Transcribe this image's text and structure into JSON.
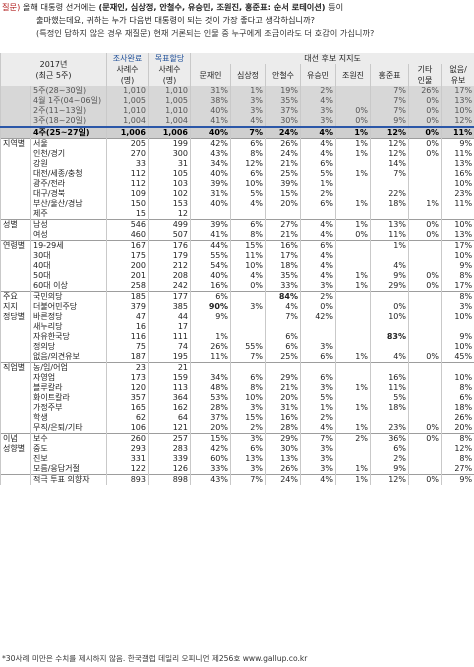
{
  "question": {
    "label": "질문)",
    "line1_a": "올해 대통령 선거에는 ",
    "line1_b": "(문재인, 심상정, 안철수, 유승민, 조원진, 홍준표: 순서 로테이션)",
    "line1_c": " 등이",
    "line2": "출마했는데요, 귀하는 누가 다음번 대통령이 되는 것이 가장 좋다고 생각하십니까?",
    "line3": "(특정인 답하지 않은 경우 재질문) 현재 거론되는 인물 중 누구에게 조금이라도 더 호감이 가십니까?"
  },
  "header": {
    "year": "2017년",
    "period": "(최근 5주)",
    "survey_done": "조사완료",
    "survey_cases": "사례수",
    "target": "목표할당",
    "target_cases": "사례수",
    "cases_unit": "(명)",
    "group": "대선 후보 지지도",
    "candidates": [
      "문재인",
      "심상정",
      "안철수",
      "유승민",
      "조원진",
      "홍준표"
    ],
    "etc": [
      "기타",
      "인물"
    ],
    "none": [
      "없음/",
      "유보"
    ]
  },
  "rows": [
    {
      "g": "",
      "s": "5주(28~30일)",
      "n1": "1,010",
      "n2": "1,010",
      "v": [
        "31%",
        "1%",
        "19%",
        "2%",
        "",
        "7%",
        "26%",
        "17%"
      ],
      "style": "gray"
    },
    {
      "g": "",
      "s": "4월 1주(04~06일)",
      "n1": "1,005",
      "n2": "1,005",
      "v": [
        "38%",
        "3%",
        "35%",
        "4%",
        "",
        "7%",
        "0%",
        "13%"
      ],
      "style": "gray"
    },
    {
      "g": "",
      "s": "2주(11~13일)",
      "n1": "1,010",
      "n2": "1,010",
      "v": [
        "40%",
        "3%",
        "37%",
        "3%",
        "0%",
        "7%",
        "0%",
        "10%"
      ],
      "style": "gray"
    },
    {
      "g": "",
      "s": "3주(18~20일)",
      "n1": "1,004",
      "n2": "1,004",
      "v": [
        "41%",
        "4%",
        "30%",
        "3%",
        "0%",
        "9%",
        "0%",
        "12%"
      ],
      "style": "gray"
    },
    {
      "g": "",
      "s": "4주(25~27일)",
      "n1": "1,006",
      "n2": "1,006",
      "v": [
        "40%",
        "7%",
        "24%",
        "4%",
        "1%",
        "12%",
        "0%",
        "11%"
      ],
      "style": "black"
    },
    {
      "g": "지역별",
      "s": "서울",
      "n1": "205",
      "n2": "199",
      "v": [
        "42%",
        "6%",
        "26%",
        "4%",
        "1%",
        "12%",
        "0%",
        "9%"
      ],
      "style": "sep"
    },
    {
      "g": "",
      "s": "인천/경기",
      "n1": "270",
      "n2": "300",
      "v": [
        "43%",
        "8%",
        "24%",
        "4%",
        "1%",
        "12%",
        "0%",
        "11%"
      ]
    },
    {
      "g": "",
      "s": "강원",
      "n1": "33",
      "n2": "31",
      "v": [
        "34%",
        "12%",
        "21%",
        "6%",
        "",
        "14%",
        "",
        "13%"
      ]
    },
    {
      "g": "",
      "s": "대전/세종/충청",
      "n1": "112",
      "n2": "105",
      "v": [
        "40%",
        "6%",
        "25%",
        "5%",
        "1%",
        "7%",
        "",
        "16%"
      ]
    },
    {
      "g": "",
      "s": "광주/전라",
      "n1": "112",
      "n2": "103",
      "v": [
        "39%",
        "10%",
        "39%",
        "1%",
        "",
        "",
        "",
        "10%"
      ]
    },
    {
      "g": "",
      "s": "대구/경북",
      "n1": "109",
      "n2": "102",
      "v": [
        "31%",
        "5%",
        "15%",
        "2%",
        "",
        "22%",
        "",
        "23%"
      ]
    },
    {
      "g": "",
      "s": "부산/울산/경남",
      "n1": "150",
      "n2": "153",
      "v": [
        "40%",
        "4%",
        "20%",
        "6%",
        "1%",
        "18%",
        "1%",
        "11%"
      ]
    },
    {
      "g": "",
      "s": "제주",
      "n1": "15",
      "n2": "12",
      "v": [
        "",
        "",
        "",
        "",
        "",
        "",
        "",
        ""
      ]
    },
    {
      "g": "성별",
      "s": "남성",
      "n1": "546",
      "n2": "499",
      "v": [
        "39%",
        "6%",
        "27%",
        "4%",
        "1%",
        "13%",
        "0%",
        "10%"
      ],
      "style": "sep"
    },
    {
      "g": "",
      "s": "여성",
      "n1": "460",
      "n2": "507",
      "v": [
        "41%",
        "8%",
        "21%",
        "4%",
        "0%",
        "11%",
        "0%",
        "13%"
      ]
    },
    {
      "g": "연령별",
      "s": "19-29세",
      "n1": "167",
      "n2": "176",
      "v": [
        "44%",
        "15%",
        "16%",
        "6%",
        "",
        "1%",
        "",
        "17%"
      ],
      "style": "sep"
    },
    {
      "g": "",
      "s": "30대",
      "n1": "175",
      "n2": "179",
      "v": [
        "55%",
        "11%",
        "17%",
        "4%",
        "",
        "",
        "",
        "10%"
      ]
    },
    {
      "g": "",
      "s": "40대",
      "n1": "200",
      "n2": "212",
      "v": [
        "54%",
        "10%",
        "18%",
        "4%",
        "",
        "4%",
        "",
        "9%"
      ]
    },
    {
      "g": "",
      "s": "50대",
      "n1": "201",
      "n2": "208",
      "v": [
        "40%",
        "4%",
        "35%",
        "4%",
        "1%",
        "9%",
        "0%",
        "8%"
      ]
    },
    {
      "g": "",
      "s": "60대 이상",
      "n1": "258",
      "n2": "242",
      "v": [
        "16%",
        "0%",
        "33%",
        "3%",
        "1%",
        "29%",
        "0%",
        "17%"
      ]
    },
    {
      "g": "주요",
      "s": "국민의당",
      "n1": "185",
      "n2": "177",
      "v": [
        "6%",
        "",
        "84%",
        "2%",
        "",
        "",
        "",
        "8%"
      ],
      "style": "sep",
      "hl": 2
    },
    {
      "g": "지지",
      "s": "더불어민주당",
      "n1": "379",
      "n2": "385",
      "v": [
        "90%",
        "3%",
        "4%",
        "0%",
        "",
        "0%",
        "",
        "3%"
      ],
      "hl": 0
    },
    {
      "g": "정당별",
      "s": "바른정당",
      "n1": "47",
      "n2": "44",
      "v": [
        "9%",
        "",
        "7%",
        "42%",
        "",
        "10%",
        "",
        "10%"
      ]
    },
    {
      "g": "",
      "s": "새누리당",
      "n1": "16",
      "n2": "17",
      "v": [
        "",
        "",
        "",
        "",
        "",
        "",
        "",
        ""
      ]
    },
    {
      "g": "",
      "s": "자유한국당",
      "n1": "116",
      "n2": "111",
      "v": [
        "1%",
        "",
        "6%",
        "",
        "",
        "83%",
        "",
        "9%"
      ],
      "hl": 5
    },
    {
      "g": "",
      "s": "정의당",
      "n1": "75",
      "n2": "74",
      "v": [
        "26%",
        "55%",
        "6%",
        "3%",
        "",
        "",
        "",
        "10%"
      ]
    },
    {
      "g": "",
      "s": "없음/의견유보",
      "n1": "187",
      "n2": "195",
      "v": [
        "11%",
        "7%",
        "25%",
        "6%",
        "1%",
        "4%",
        "0%",
        "45%"
      ]
    },
    {
      "g": "직업별",
      "s": "농/임/어업",
      "n1": "23",
      "n2": "21",
      "v": [
        "",
        "",
        "",
        "",
        "",
        "",
        "",
        ""
      ],
      "style": "sep"
    },
    {
      "g": "",
      "s": "자영업",
      "n1": "173",
      "n2": "159",
      "v": [
        "34%",
        "6%",
        "29%",
        "6%",
        "",
        "16%",
        "",
        "10%"
      ]
    },
    {
      "g": "",
      "s": "블루칼라",
      "n1": "120",
      "n2": "113",
      "v": [
        "48%",
        "8%",
        "21%",
        "3%",
        "1%",
        "11%",
        "",
        "8%"
      ]
    },
    {
      "g": "",
      "s": "화이트칼라",
      "n1": "357",
      "n2": "364",
      "v": [
        "53%",
        "10%",
        "20%",
        "5%",
        "",
        "5%",
        "",
        "6%"
      ]
    },
    {
      "g": "",
      "s": "가정주부",
      "n1": "165",
      "n2": "162",
      "v": [
        "28%",
        "3%",
        "31%",
        "1%",
        "1%",
        "18%",
        "",
        "18%"
      ]
    },
    {
      "g": "",
      "s": "학생",
      "n1": "62",
      "n2": "64",
      "v": [
        "37%",
        "15%",
        "16%",
        "2%",
        "",
        "",
        "",
        "26%"
      ]
    },
    {
      "g": "",
      "s": "무직/은퇴/기타",
      "n1": "106",
      "n2": "121",
      "v": [
        "20%",
        "2%",
        "28%",
        "4%",
        "1%",
        "23%",
        "0%",
        "20%"
      ]
    },
    {
      "g": "이념",
      "s": "보수",
      "n1": "260",
      "n2": "257",
      "v": [
        "15%",
        "3%",
        "29%",
        "7%",
        "2%",
        "36%",
        "0%",
        "8%"
      ],
      "style": "sep"
    },
    {
      "g": "성향별",
      "s": "중도",
      "n1": "293",
      "n2": "283",
      "v": [
        "42%",
        "6%",
        "30%",
        "3%",
        "",
        "6%",
        "",
        "12%"
      ]
    },
    {
      "g": "",
      "s": "진보",
      "n1": "331",
      "n2": "339",
      "v": [
        "60%",
        "13%",
        "13%",
        "3%",
        "",
        "2%",
        "",
        "8%"
      ]
    },
    {
      "g": "",
      "s": "모름/응답거절",
      "n1": "122",
      "n2": "126",
      "v": [
        "33%",
        "3%",
        "26%",
        "3%",
        "1%",
        "9%",
        "",
        "27%"
      ]
    },
    {
      "g": "",
      "s": "적극 투표 의향자",
      "n1": "893",
      "n2": "898",
      "v": [
        "43%",
        "7%",
        "24%",
        "4%",
        "1%",
        "12%",
        "0%",
        "9%"
      ],
      "style": "sep"
    }
  ],
  "footer": "*30사례 미만은 수치를 제시하지 않음. 한국갤럽 데일리 오피니언 제256호 www.gallup.co.kr"
}
